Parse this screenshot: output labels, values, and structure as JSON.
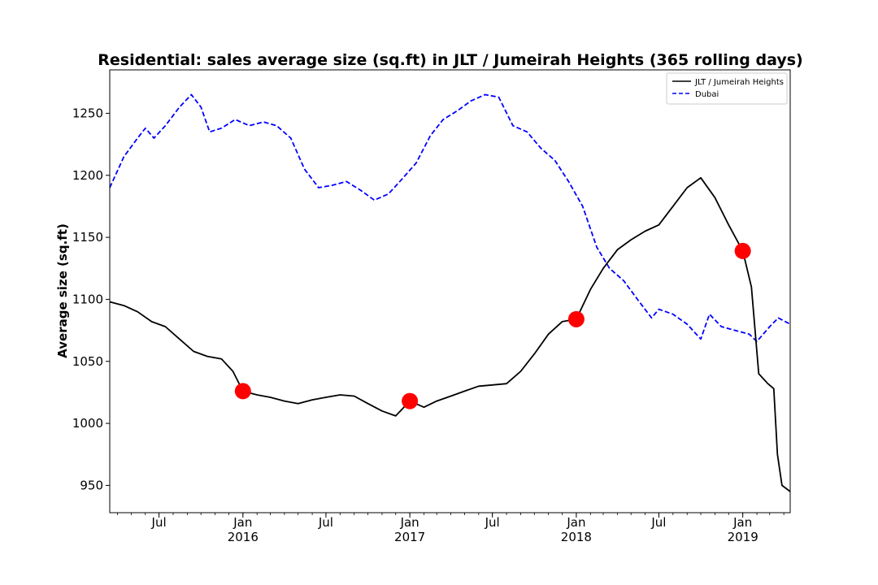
{
  "chart_data": {
    "type": "line",
    "title": "Residential: sales average size (sq.ft) in JLT / Jumeirah Heights (365 rolling days)",
    "ylabel": "Average size (sq.ft)",
    "xlabel": "",
    "xlim": [
      "2015-03-15",
      "2019-04-15"
    ],
    "ylim": [
      928,
      1285
    ],
    "yticks": [
      950,
      1000,
      1050,
      1100,
      1150,
      1200,
      1250
    ],
    "xticks": [
      {
        "date": "2015-07-01",
        "label": "Jul",
        "year": ""
      },
      {
        "date": "2016-01-01",
        "label": "Jan",
        "year": "2016"
      },
      {
        "date": "2016-07-01",
        "label": "Jul",
        "year": ""
      },
      {
        "date": "2017-01-01",
        "label": "Jan",
        "year": "2017"
      },
      {
        "date": "2017-07-01",
        "label": "Jul",
        "year": ""
      },
      {
        "date": "2018-01-01",
        "label": "Jan",
        "year": "2018"
      },
      {
        "date": "2018-07-01",
        "label": "Jul",
        "year": ""
      },
      {
        "date": "2019-01-01",
        "label": "Jan",
        "year": "2019"
      }
    ],
    "grid": false,
    "legend": "top-right",
    "series": [
      {
        "name": "JLT / Jumeirah Heights",
        "color": "#000000",
        "style": "solid",
        "points": [
          [
            "2015-03-15",
            1098
          ],
          [
            "2015-04-15",
            1095
          ],
          [
            "2015-05-15",
            1090
          ],
          [
            "2015-06-15",
            1082
          ],
          [
            "2015-07-15",
            1078
          ],
          [
            "2015-08-15",
            1068
          ],
          [
            "2015-09-15",
            1058
          ],
          [
            "2015-10-15",
            1054
          ],
          [
            "2015-11-15",
            1052
          ],
          [
            "2015-12-10",
            1042
          ],
          [
            "2016-01-01",
            1026
          ],
          [
            "2016-02-01",
            1023
          ],
          [
            "2016-03-01",
            1021
          ],
          [
            "2016-04-01",
            1018
          ],
          [
            "2016-05-01",
            1016
          ],
          [
            "2016-06-01",
            1019
          ],
          [
            "2016-07-01",
            1021
          ],
          [
            "2016-08-01",
            1023
          ],
          [
            "2016-09-01",
            1022
          ],
          [
            "2016-10-01",
            1016
          ],
          [
            "2016-11-01",
            1010
          ],
          [
            "2016-12-01",
            1006
          ],
          [
            "2017-01-01",
            1018
          ],
          [
            "2017-02-01",
            1013
          ],
          [
            "2017-03-01",
            1018
          ],
          [
            "2017-04-01",
            1022
          ],
          [
            "2017-05-01",
            1026
          ],
          [
            "2017-06-01",
            1030
          ],
          [
            "2017-07-01",
            1031
          ],
          [
            "2017-08-01",
            1032
          ],
          [
            "2017-09-01",
            1042
          ],
          [
            "2017-10-01",
            1056
          ],
          [
            "2017-11-01",
            1072
          ],
          [
            "2017-12-01",
            1082
          ],
          [
            "2018-01-01",
            1084
          ],
          [
            "2018-02-01",
            1108
          ],
          [
            "2018-03-01",
            1125
          ],
          [
            "2018-04-01",
            1140
          ],
          [
            "2018-05-01",
            1148
          ],
          [
            "2018-06-01",
            1155
          ],
          [
            "2018-07-01",
            1160
          ],
          [
            "2018-08-01",
            1175
          ],
          [
            "2018-09-01",
            1190
          ],
          [
            "2018-10-01",
            1198
          ],
          [
            "2018-11-01",
            1182
          ],
          [
            "2018-12-01",
            1160
          ],
          [
            "2019-01-01",
            1139
          ],
          [
            "2019-01-20",
            1110
          ],
          [
            "2019-02-05",
            1040
          ],
          [
            "2019-02-25",
            1032
          ],
          [
            "2019-03-10",
            1028
          ],
          [
            "2019-03-18",
            975
          ],
          [
            "2019-03-28",
            950
          ],
          [
            "2019-04-15",
            945
          ]
        ]
      },
      {
        "name": "Dubai",
        "color": "#0000ff",
        "style": "dashed",
        "points": [
          [
            "2015-03-15",
            1190
          ],
          [
            "2015-04-15",
            1215
          ],
          [
            "2015-05-15",
            1230
          ],
          [
            "2015-06-01",
            1238
          ],
          [
            "2015-06-20",
            1230
          ],
          [
            "2015-07-15",
            1240
          ],
          [
            "2015-08-15",
            1255
          ],
          [
            "2015-09-10",
            1265
          ],
          [
            "2015-10-01",
            1255
          ],
          [
            "2015-10-20",
            1235
          ],
          [
            "2015-11-15",
            1238
          ],
          [
            "2015-12-15",
            1245
          ],
          [
            "2016-01-15",
            1240
          ],
          [
            "2016-02-15",
            1243
          ],
          [
            "2016-03-15",
            1240
          ],
          [
            "2016-04-15",
            1230
          ],
          [
            "2016-05-15",
            1205
          ],
          [
            "2016-06-15",
            1190
          ],
          [
            "2016-07-15",
            1192
          ],
          [
            "2016-08-15",
            1195
          ],
          [
            "2016-09-15",
            1188
          ],
          [
            "2016-10-15",
            1180
          ],
          [
            "2016-11-15",
            1185
          ],
          [
            "2016-12-15",
            1197
          ],
          [
            "2017-01-15",
            1210
          ],
          [
            "2017-02-15",
            1232
          ],
          [
            "2017-03-15",
            1245
          ],
          [
            "2017-04-15",
            1252
          ],
          [
            "2017-05-15",
            1260
          ],
          [
            "2017-06-15",
            1265
          ],
          [
            "2017-07-15",
            1263
          ],
          [
            "2017-08-15",
            1240
          ],
          [
            "2017-09-15",
            1235
          ],
          [
            "2017-10-15",
            1222
          ],
          [
            "2017-11-15",
            1212
          ],
          [
            "2017-12-15",
            1195
          ],
          [
            "2018-01-15",
            1175
          ],
          [
            "2018-02-15",
            1142
          ],
          [
            "2018-03-15",
            1125
          ],
          [
            "2018-04-15",
            1115
          ],
          [
            "2018-05-15",
            1100
          ],
          [
            "2018-06-15",
            1085
          ],
          [
            "2018-07-01",
            1092
          ],
          [
            "2018-08-01",
            1088
          ],
          [
            "2018-09-01",
            1080
          ],
          [
            "2018-10-01",
            1068
          ],
          [
            "2018-10-20",
            1088
          ],
          [
            "2018-11-15",
            1078
          ],
          [
            "2018-12-15",
            1075
          ],
          [
            "2019-01-15",
            1072
          ],
          [
            "2019-02-01",
            1066
          ],
          [
            "2019-03-01",
            1078
          ],
          [
            "2019-03-20",
            1085
          ],
          [
            "2019-04-15",
            1080
          ]
        ]
      }
    ],
    "markers": {
      "color": "#ff0000",
      "points": [
        [
          "2016-01-01",
          1026
        ],
        [
          "2017-01-01",
          1018
        ],
        [
          "2018-01-01",
          1084
        ],
        [
          "2019-01-01",
          1139
        ]
      ]
    }
  }
}
